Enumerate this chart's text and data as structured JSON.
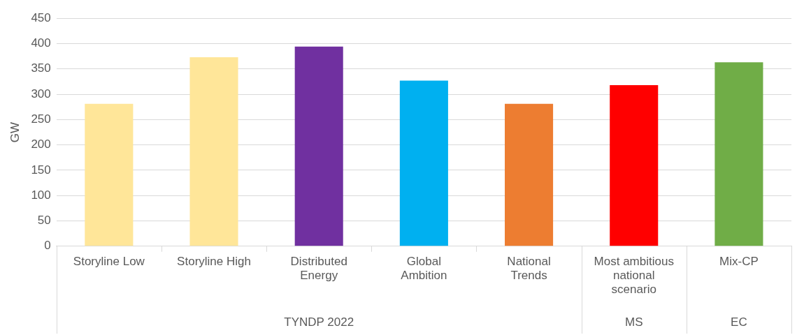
{
  "chart_data": {
    "type": "bar",
    "ylabel": "GW",
    "categories": [
      "Storyline Low",
      "Storyline High",
      "Distributed Energy",
      "Global Ambition",
      "National Trends",
      "Most ambitious national scenario",
      "Mix-CP"
    ],
    "values": [
      281,
      373,
      394,
      327,
      281,
      318,
      363
    ],
    "colors": [
      "#ffe699",
      "#ffe699",
      "#7030a0",
      "#00b0f0",
      "#ed7d31",
      "#ff0000",
      "#70ad47"
    ],
    "ylim": [
      0,
      450
    ],
    "yticks": [
      0,
      50,
      100,
      150,
      200,
      250,
      300,
      350,
      400,
      450
    ],
    "grid": "y",
    "legend": false,
    "annotations": [
      "TYNDP 2022",
      "MS",
      "EC"
    ]
  }
}
